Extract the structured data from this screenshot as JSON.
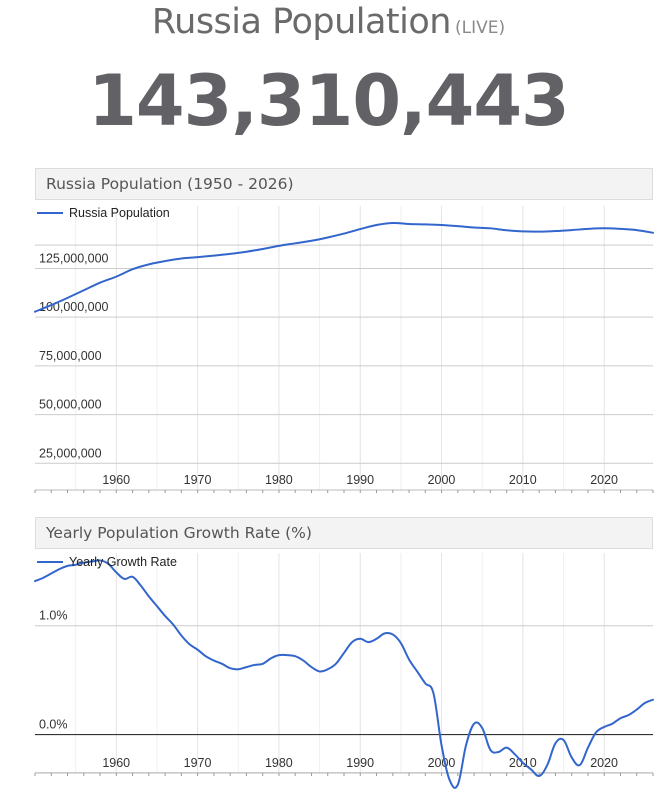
{
  "header": {
    "title": "Russia Population",
    "live_label": "(LIVE)",
    "counter": "143,310,443"
  },
  "colors": {
    "series": "#3366cc",
    "grid": "#cccccc",
    "zero_line": "#333333",
    "axis": "#333333"
  },
  "chart_data": [
    {
      "type": "line",
      "title": "Russia Population (1950 - 2026)",
      "legend": "top-left",
      "series_name": "Russia Population",
      "xlim": [
        1950,
        2026
      ],
      "ylim": [
        0,
        155000000
      ],
      "grid": true,
      "y_ticks": [
        {
          "value": 125000000,
          "label": "125,000,000"
        },
        {
          "value": 100000000,
          "label": "100,000,000"
        },
        {
          "value": 75000000,
          "label": "75,000,000"
        },
        {
          "value": 50000000,
          "label": "50,000,000"
        },
        {
          "value": 25000000,
          "label": "25,000,000"
        }
      ],
      "x_ticks": [
        {
          "value": 1960,
          "label": "1960"
        },
        {
          "value": 1970,
          "label": "1970"
        },
        {
          "value": 1980,
          "label": "1980"
        },
        {
          "value": 1990,
          "label": "1990"
        },
        {
          "value": 2000,
          "label": "2000"
        },
        {
          "value": 2010,
          "label": "2010"
        },
        {
          "value": 2020,
          "label": "2020"
        }
      ],
      "x": [
        1950,
        1952,
        1954,
        1956,
        1958,
        1960,
        1962,
        1964,
        1966,
        1968,
        1970,
        1972,
        1974,
        1976,
        1978,
        1980,
        1982,
        1984,
        1986,
        1988,
        1990,
        1992,
        1994,
        1996,
        1998,
        2000,
        2002,
        2004,
        2006,
        2008,
        2010,
        2012,
        2014,
        2016,
        2018,
        2020,
        2022,
        2024,
        2026
      ],
      "values": [
        102800000,
        106200000,
        109900000,
        113800000,
        117700000,
        120800000,
        124600000,
        127100000,
        128800000,
        130100000,
        130800000,
        131600000,
        132500000,
        133600000,
        135000000,
        136600000,
        137900000,
        139200000,
        140900000,
        142900000,
        145200000,
        147300000,
        148300000,
        147800000,
        147600000,
        147300000,
        146700000,
        146000000,
        145600000,
        144600000,
        144000000,
        143900000,
        144200000,
        144700000,
        145300000,
        145600000,
        145300000,
        144700000,
        143300000
      ]
    },
    {
      "type": "line",
      "title": "Yearly Population Growth Rate (%)",
      "legend": "top-left",
      "series_name": "Yearly Growth Rate",
      "xlim": [
        1950,
        2026
      ],
      "ylim": [
        -0.5,
        1.65
      ],
      "grid": true,
      "y_ticks": [
        {
          "value": 1.0,
          "label": "1.0%"
        },
        {
          "value": 0.0,
          "label": "0.0%"
        }
      ],
      "x_ticks": [
        {
          "value": 1960,
          "label": "1960"
        },
        {
          "value": 1970,
          "label": "1970"
        },
        {
          "value": 1980,
          "label": "1980"
        },
        {
          "value": 1990,
          "label": "1990"
        },
        {
          "value": 2000,
          "label": "2000"
        },
        {
          "value": 2010,
          "label": "2010"
        },
        {
          "value": 2020,
          "label": "2020"
        }
      ],
      "x": [
        1950,
        1951,
        1952,
        1953,
        1954,
        1955,
        1956,
        1957,
        1958,
        1959,
        1960,
        1961,
        1962,
        1963,
        1964,
        1965,
        1966,
        1967,
        1968,
        1969,
        1970,
        1971,
        1972,
        1973,
        1974,
        1975,
        1976,
        1977,
        1978,
        1979,
        1980,
        1981,
        1982,
        1983,
        1984,
        1985,
        1986,
        1987,
        1988,
        1989,
        1990,
        1991,
        1992,
        1993,
        1994,
        1995,
        1996,
        1997,
        1998,
        1999,
        2000,
        2001,
        2002,
        2003,
        2004,
        2005,
        2006,
        2007,
        2008,
        2009,
        2010,
        2011,
        2012,
        2013,
        2014,
        2015,
        2016,
        2017,
        2018,
        2019,
        2020,
        2021,
        2022,
        2023,
        2024,
        2025,
        2026
      ],
      "values": [
        1.41,
        1.44,
        1.48,
        1.52,
        1.55,
        1.56,
        1.58,
        1.59,
        1.6,
        1.57,
        1.49,
        1.43,
        1.45,
        1.37,
        1.27,
        1.18,
        1.09,
        1.01,
        0.91,
        0.83,
        0.78,
        0.72,
        0.68,
        0.65,
        0.61,
        0.6,
        0.62,
        0.64,
        0.65,
        0.7,
        0.73,
        0.73,
        0.72,
        0.68,
        0.62,
        0.58,
        0.6,
        0.65,
        0.75,
        0.85,
        0.88,
        0.85,
        0.88,
        0.93,
        0.92,
        0.84,
        0.69,
        0.58,
        0.47,
        0.38,
        -0.1,
        -0.42,
        -0.46,
        -0.1,
        0.1,
        0.06,
        -0.14,
        -0.16,
        -0.12,
        -0.18,
        -0.26,
        -0.32,
        -0.38,
        -0.28,
        -0.08,
        -0.05,
        -0.21,
        -0.28,
        -0.12,
        0.02,
        0.07,
        0.1,
        0.15,
        0.18,
        0.23,
        0.29,
        0.32
      ]
    }
  ]
}
